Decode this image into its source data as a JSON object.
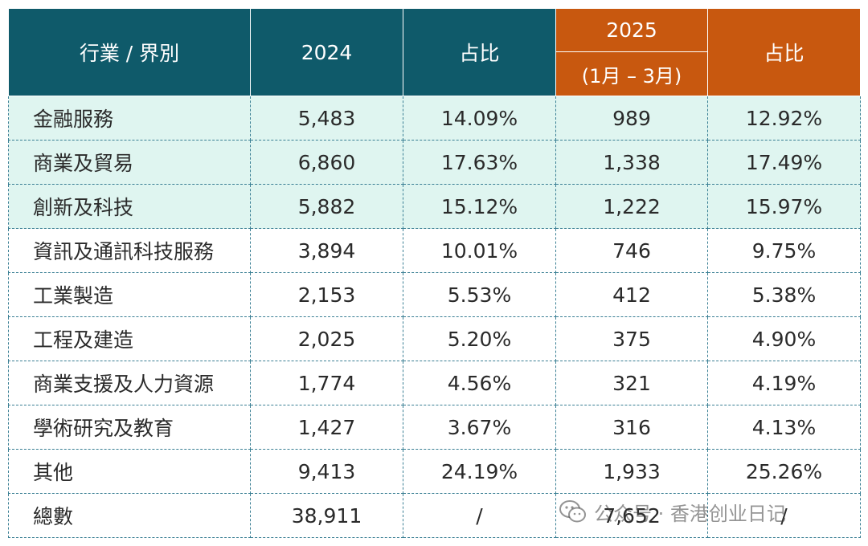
{
  "table": {
    "header": {
      "industry": "行業 / 界別",
      "year_2024": "2024",
      "share_2024": "占比",
      "year_2025": "2025",
      "period_2025": "(1月 – 3月)",
      "share_2025": "占比"
    },
    "rows": [
      {
        "label": "金融服務",
        "v2024": "5,483",
        "s2024": "14.09%",
        "v2025": "989",
        "s2025": "12.92%"
      },
      {
        "label": "商業及貿易",
        "v2024": "6,860",
        "s2024": "17.63%",
        "v2025": "1,338",
        "s2025": "17.49%"
      },
      {
        "label": "創新及科技",
        "v2024": "5,882",
        "s2024": "15.12%",
        "v2025": "1,222",
        "s2025": "15.97%"
      },
      {
        "label": "資訊及通訊科技服務",
        "v2024": "3,894",
        "s2024": "10.01%",
        "v2025": "746",
        "s2025": "9.75%"
      },
      {
        "label": "工業製造",
        "v2024": "2,153",
        "s2024": "5.53%",
        "v2025": "412",
        "s2025": "5.38%"
      },
      {
        "label": "工程及建造",
        "v2024": "2,025",
        "s2024": "5.20%",
        "v2025": "375",
        "s2025": "4.90%"
      },
      {
        "label": "商業支援及人力資源",
        "v2024": "1,774",
        "s2024": "4.56%",
        "v2025": "321",
        "s2025": "4.19%"
      },
      {
        "label": "學術研究及教育",
        "v2024": "1,427",
        "s2024": "3.67%",
        "v2025": "316",
        "s2025": "4.13%"
      },
      {
        "label": "其他",
        "v2024": "9,413",
        "s2024": "24.19%",
        "v2025": "1,933",
        "s2025": "25.26%"
      },
      {
        "label": "總數",
        "v2024": "38,911",
        "s2024": "/",
        "v2025": "7,652",
        "s2025": "/"
      }
    ]
  },
  "watermark": {
    "text": "公众号 · 香港创业日记",
    "icon": "wechat-icon"
  },
  "colors": {
    "header_teal": "#0f5a6a",
    "header_orange": "#c8580f",
    "highlight_row": "#dff5f0"
  }
}
